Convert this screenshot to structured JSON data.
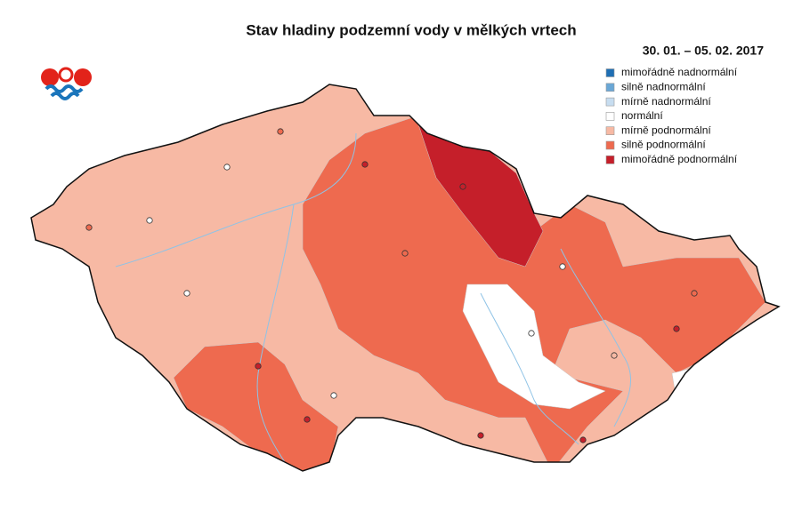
{
  "title": "Stav hladiny podzemní vody v mělkých vrtech",
  "date": "30. 01. – 05. 02. 2017",
  "legend": [
    {
      "label": "mimořádně nadnormální",
      "color": "#1f6fb4"
    },
    {
      "label": "silně nadnormální",
      "color": "#6aa7d6"
    },
    {
      "label": "mírně nadnormální",
      "color": "#c7ddf0"
    },
    {
      "label": "normální",
      "color": "#ffffff"
    },
    {
      "label": "mírně podnormální",
      "color": "#f7b9a4"
    },
    {
      "label": "silně podnormální",
      "color": "#ee6a4f"
    },
    {
      "label": "mimořádně podnormální",
      "color": "#c51f2a"
    }
  ]
}
